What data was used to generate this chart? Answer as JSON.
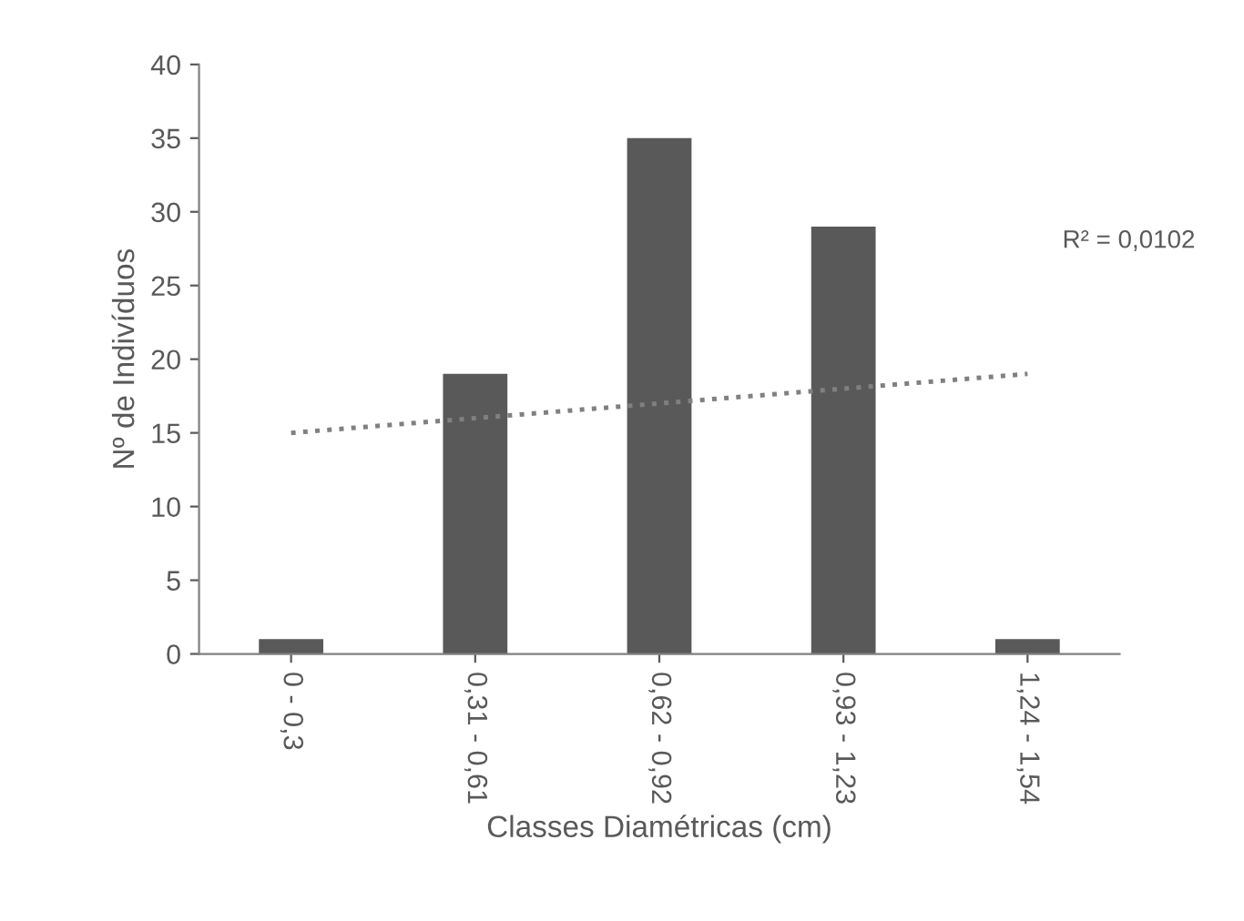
{
  "chart_data": {
    "type": "bar",
    "xlabel": "Classes Diamétricas (cm)",
    "ylabel": "Nº de Indivíduos",
    "categories": [
      "0 - 0,3",
      "0,31 - 0,61",
      "0,62 - 0,92",
      "0,93 - 1,23",
      "1,24 - 1,54"
    ],
    "series": [
      {
        "color": "#595959",
        "values": [
          1,
          19,
          35,
          29,
          1
        ]
      },
      {
        "type": "line",
        "color": "#808080",
        "line_style": "dotted",
        "values": [
          15,
          16,
          17,
          18,
          19
        ]
      }
    ],
    "ylim": [
      0,
      40
    ],
    "yticks": [
      0,
      5,
      10,
      15,
      20,
      25,
      30,
      35,
      40
    ],
    "grid": false,
    "legend": false,
    "annotations": [
      "R² = 0,0102"
    ]
  }
}
